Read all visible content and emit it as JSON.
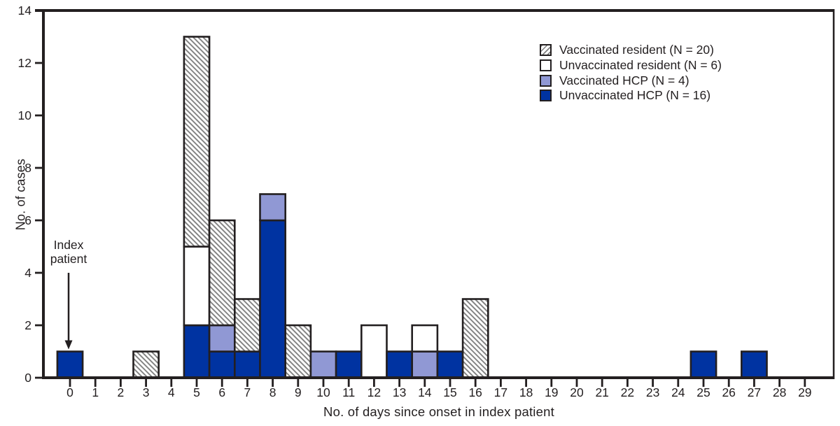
{
  "figure": {
    "annotation": {
      "text": "Index patient"
    },
    "legend": {
      "items": [
        {
          "label": "Vaccinated resident (N = 20)",
          "series": "vaccinated_resident",
          "fill": "hatched"
        },
        {
          "label": "Unvaccinated resident (N = 6)",
          "series": "unvaccinated_resident",
          "fill": "#FFFFFF"
        },
        {
          "label": "Vaccinated HCP (N = 4)",
          "series": "vaccinated_hcp",
          "fill": "#9098D4"
        },
        {
          "label": "Unvaccinated HCP (N = 16)",
          "series": "unvaccinated_hcp",
          "fill": "#0033A1"
        }
      ]
    }
  },
  "chart_data": {
    "type": "bar",
    "stacked": true,
    "title": "",
    "xlabel": "No. of days since onset in index patient",
    "ylabel": "No. of cases",
    "categories": [
      0,
      1,
      2,
      3,
      4,
      5,
      6,
      7,
      8,
      9,
      10,
      11,
      12,
      13,
      14,
      15,
      16,
      17,
      18,
      19,
      20,
      21,
      22,
      23,
      24,
      25,
      26,
      27,
      28,
      29
    ],
    "ylim": [
      0,
      14
    ],
    "yticks": [
      0,
      2,
      4,
      6,
      8,
      10,
      12,
      14
    ],
    "grid": false,
    "legend_position": "top-right",
    "stack_order_bottom_to_top": [
      "unvaccinated_hcp",
      "vaccinated_hcp",
      "unvaccinated_resident",
      "vaccinated_resident"
    ],
    "series": [
      {
        "id": "vaccinated_resident",
        "name": "Vaccinated resident (N = 20)",
        "n": 20,
        "fill": "hatched",
        "values": [
          0,
          0,
          0,
          1,
          0,
          8,
          4,
          2,
          0,
          2,
          0,
          0,
          0,
          0,
          0,
          0,
          3,
          0,
          0,
          0,
          0,
          0,
          0,
          0,
          0,
          0,
          0,
          0,
          0,
          0
        ]
      },
      {
        "id": "unvaccinated_resident",
        "name": "Unvaccinated resident (N = 6)",
        "n": 6,
        "fill": "#FFFFFF",
        "values": [
          0,
          0,
          0,
          0,
          0,
          3,
          0,
          0,
          0,
          0,
          0,
          0,
          2,
          0,
          1,
          0,
          0,
          0,
          0,
          0,
          0,
          0,
          0,
          0,
          0,
          0,
          0,
          0,
          0,
          0
        ]
      },
      {
        "id": "vaccinated_hcp",
        "name": "Vaccinated HCP (N = 4)",
        "n": 4,
        "fill": "#9098D4",
        "values": [
          0,
          0,
          0,
          0,
          0,
          0,
          1,
          0,
          1,
          0,
          1,
          0,
          0,
          0,
          1,
          0,
          0,
          0,
          0,
          0,
          0,
          0,
          0,
          0,
          0,
          0,
          0,
          0,
          0,
          0
        ]
      },
      {
        "id": "unvaccinated_hcp",
        "name": "Unvaccinated HCP (N = 16)",
        "n": 16,
        "fill": "#0033A1",
        "values": [
          1,
          0,
          0,
          0,
          0,
          2,
          1,
          1,
          6,
          0,
          0,
          1,
          0,
          1,
          0,
          1,
          0,
          0,
          0,
          0,
          0,
          0,
          0,
          0,
          0,
          1,
          0,
          1,
          0,
          0
        ]
      }
    ],
    "colors": {
      "outline": "#231F20",
      "hatch_line": "#808080",
      "unvaccinated_hcp": "#0033A1",
      "vaccinated_hcp": "#9098D4",
      "unvaccinated_resident": "#FFFFFF",
      "background": "#FFFFFF"
    },
    "annotations": [
      {
        "text": "Index patient",
        "points_to_day": 0
      }
    ]
  }
}
